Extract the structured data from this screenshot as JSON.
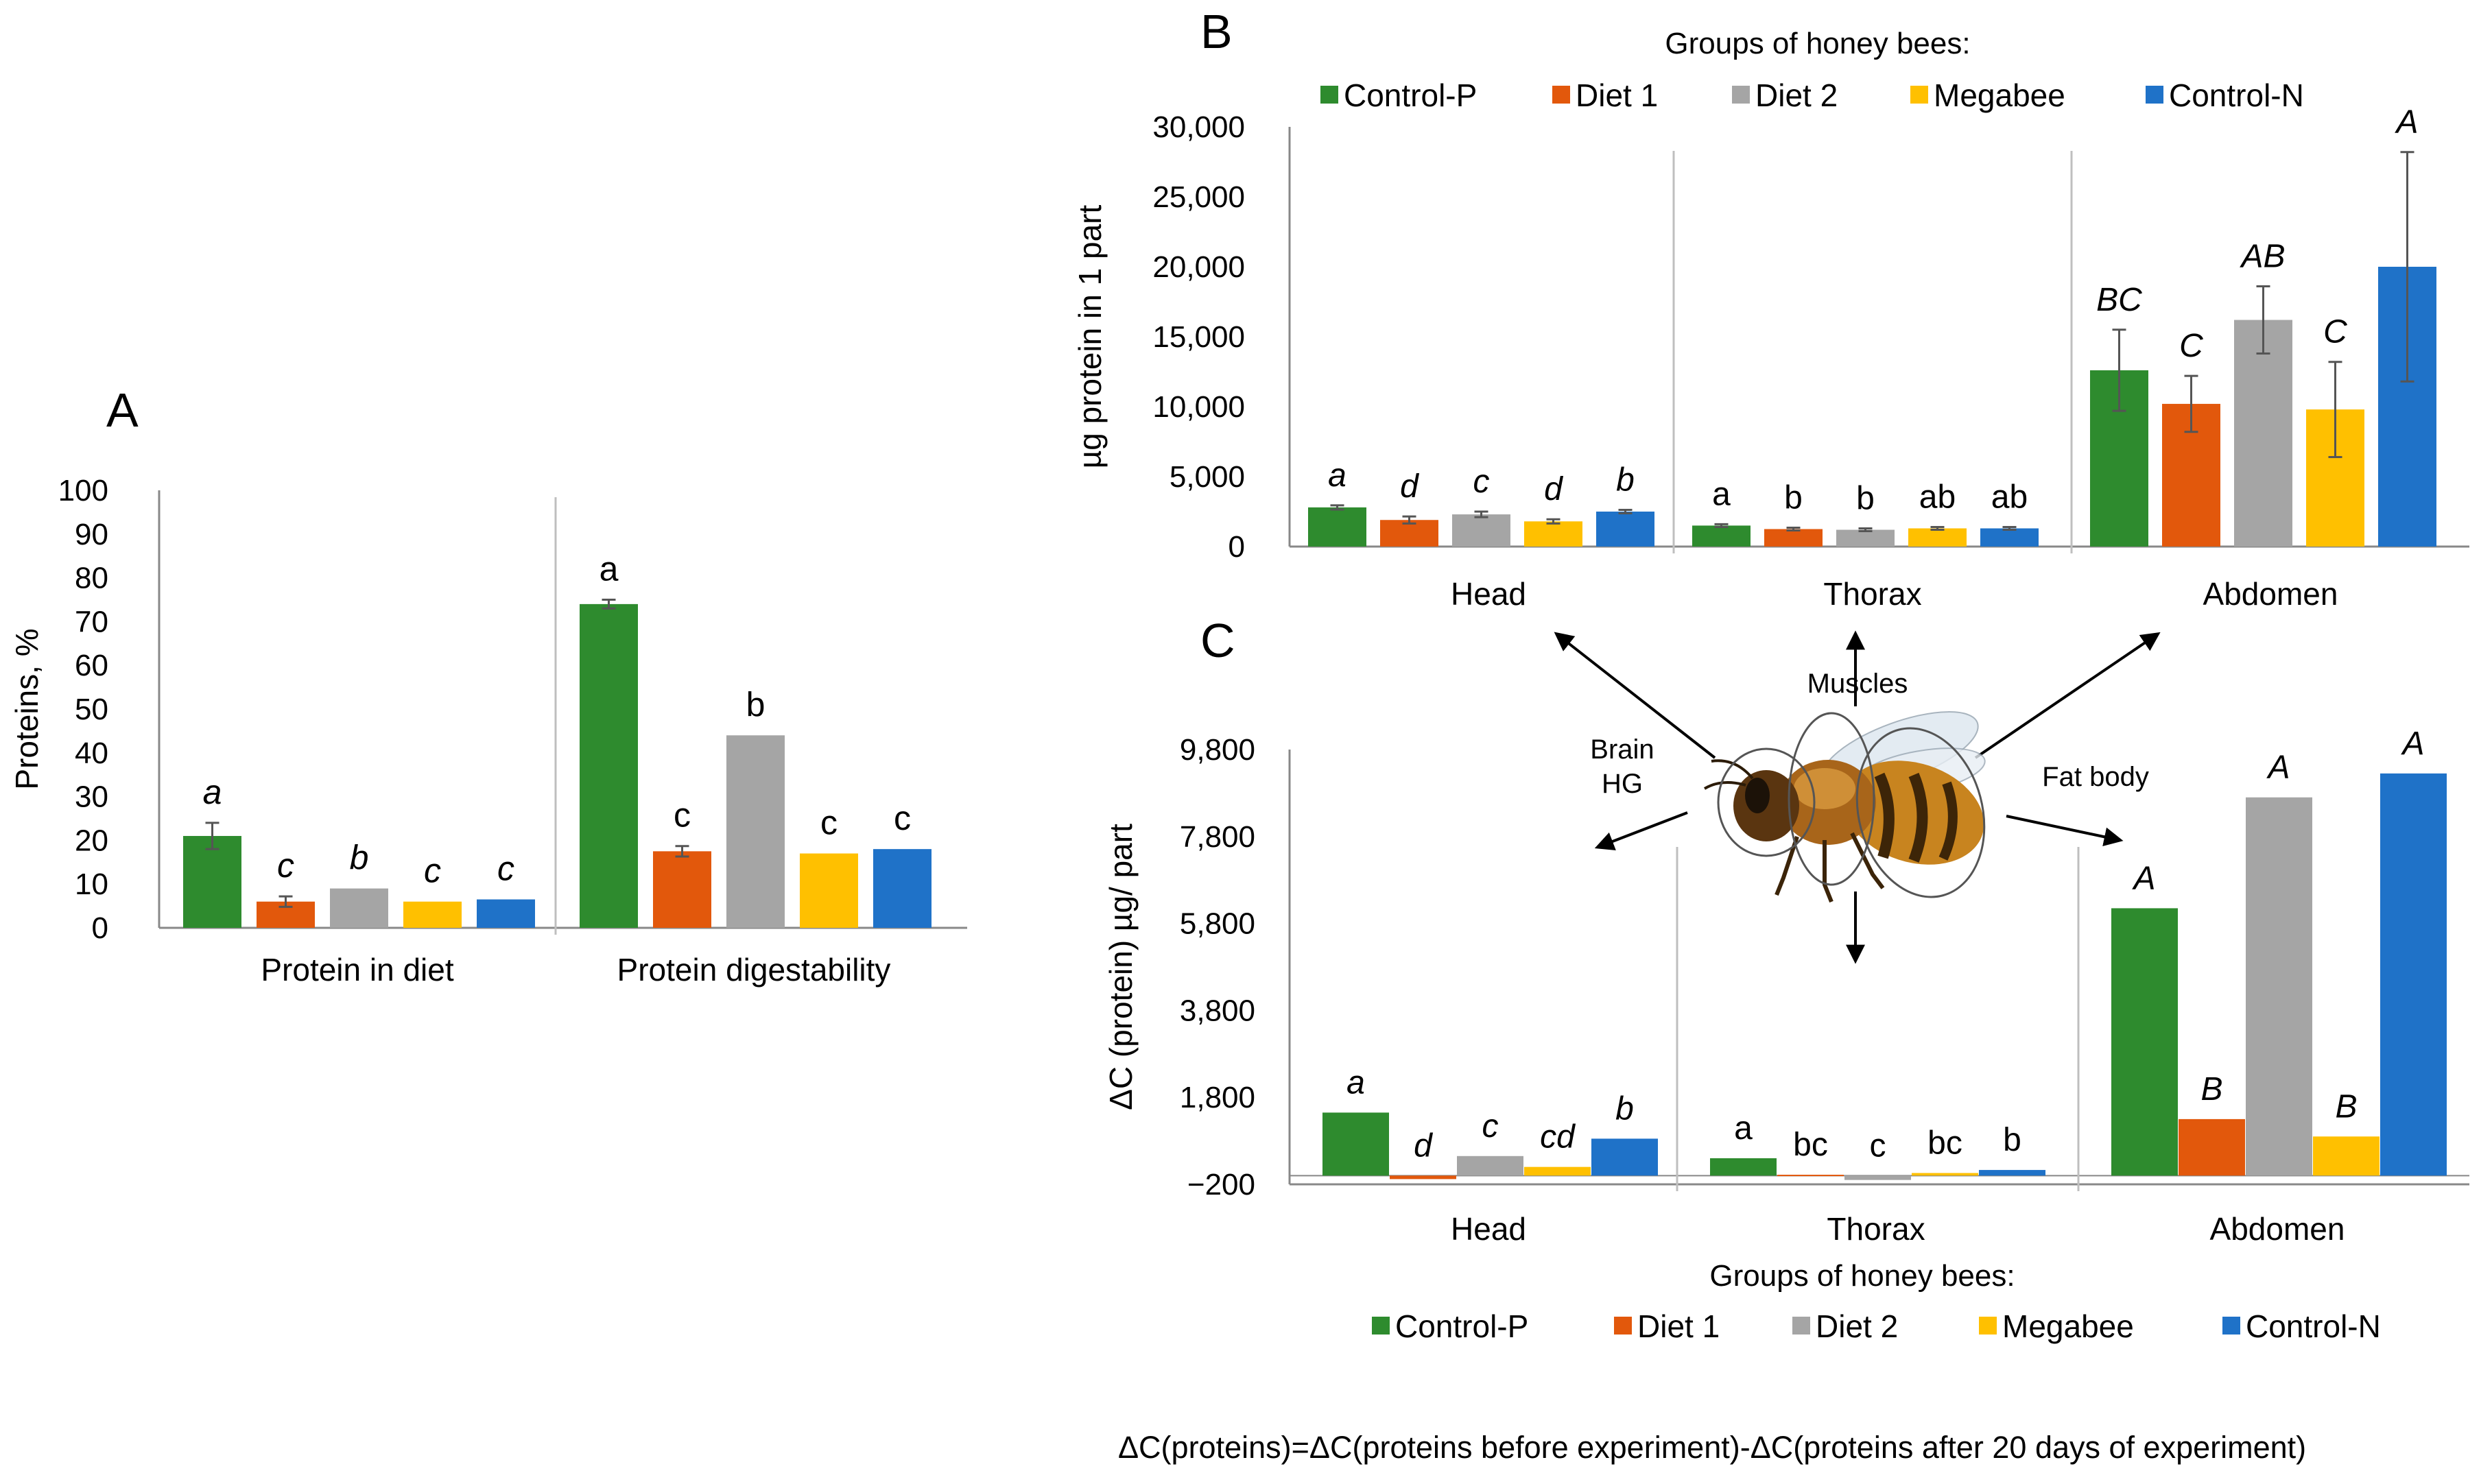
{
  "colors": {
    "Control-P": "#2e8b2e",
    "Diet 1": "#e2580c",
    "Diet 2": "#a5a5a5",
    "Megabee": "#ffc000",
    "Control-N": "#1f72c8",
    "axis": "#888888",
    "separator": "#bfbfbf",
    "errorbar": "#555555"
  },
  "chart_data": [
    {
      "id": "A",
      "type": "bar",
      "panel_label": "A",
      "ylabel": "Proteins, %",
      "ylim": [
        0,
        100
      ],
      "yticks": [
        0,
        10,
        20,
        30,
        40,
        50,
        60,
        70,
        80,
        90,
        100
      ],
      "categories": [
        "Protein in diet",
        "Protein digestability"
      ],
      "series": [
        {
          "name": "Control-P",
          "values": [
            21,
            74
          ],
          "errors": [
            3,
            1
          ],
          "letters": [
            "a",
            "a"
          ]
        },
        {
          "name": "Diet 1",
          "values": [
            6,
            17.5
          ],
          "errors": [
            1.2,
            1.2
          ],
          "letters": [
            "c",
            "c"
          ]
        },
        {
          "name": "Diet 2",
          "values": [
            9,
            44
          ],
          "errors": [
            0,
            0
          ],
          "letters": [
            "b",
            "b"
          ]
        },
        {
          "name": "Megabee",
          "values": [
            6,
            17
          ],
          "errors": [
            0,
            0
          ],
          "letters": [
            "c",
            "c"
          ]
        },
        {
          "name": "Control-N",
          "values": [
            6.5,
            18
          ],
          "errors": [
            0,
            0
          ],
          "letters": [
            "c",
            "c"
          ]
        }
      ],
      "letter_style": [
        "italic",
        "normal"
      ]
    },
    {
      "id": "B",
      "type": "bar",
      "panel_label": "B",
      "legend_title": "Groups of honey bees:",
      "legend": [
        "Control-P",
        "Diet 1",
        "Diet 2",
        "Megabee",
        "Control-N"
      ],
      "ylabel": "µg protein in 1 part",
      "ylim": [
        0,
        30000
      ],
      "yticks": [
        0,
        5000,
        10000,
        15000,
        20000,
        25000,
        30000
      ],
      "ytick_labels": [
        "0",
        "5,000",
        "10,000",
        "15,000",
        "20,000",
        "25,000",
        "30,000"
      ],
      "categories": [
        "Head",
        "Thorax",
        "Abdomen"
      ],
      "series": [
        {
          "name": "Control-P",
          "values": [
            2800,
            1500,
            12600
          ],
          "errors": [
            150,
            100,
            2900
          ],
          "letters": [
            "a",
            "a",
            "BC"
          ]
        },
        {
          "name": "Diet 1",
          "values": [
            1900,
            1250,
            10200
          ],
          "errors": [
            250,
            100,
            2000
          ],
          "letters": [
            "d",
            "b",
            "C"
          ]
        },
        {
          "name": "Diet 2",
          "values": [
            2300,
            1200,
            16200
          ],
          "errors": [
            200,
            100,
            2400
          ],
          "letters": [
            "c",
            "b",
            "AB"
          ]
        },
        {
          "name": "Megabee",
          "values": [
            1800,
            1300,
            9800
          ],
          "errors": [
            150,
            100,
            3400
          ],
          "letters": [
            "d",
            "ab",
            "C"
          ]
        },
        {
          "name": "Control-N",
          "values": [
            2500,
            1300,
            20000
          ],
          "errors": [
            120,
            100,
            8200
          ],
          "letters": [
            "b",
            "ab",
            "A"
          ]
        }
      ],
      "letter_style": [
        "italic",
        "normal",
        "italic"
      ]
    },
    {
      "id": "C",
      "type": "bar",
      "panel_label": "C",
      "legend_title": "Groups of honey bees:",
      "legend": [
        "Control-P",
        "Diet 1",
        "Diet 2",
        "Megabee",
        "Control-N"
      ],
      "ylabel": "ΔC (protein) µg/ part",
      "ylim": [
        -200,
        9800
      ],
      "yticks": [
        -200,
        1800,
        3800,
        5800,
        7800,
        9800
      ],
      "ytick_labels": [
        "−200",
        "1,800",
        "3,800",
        "5,800",
        "7,800",
        "9,800"
      ],
      "categories": [
        "Head",
        "Thorax",
        "Abdomen"
      ],
      "series": [
        {
          "name": "Control-P",
          "values": [
            1450,
            400,
            6150
          ],
          "letters": [
            "a",
            "a",
            "A"
          ]
        },
        {
          "name": "Diet 1",
          "values": [
            -80,
            20,
            1300
          ],
          "letters": [
            "d",
            "bc",
            "B"
          ]
        },
        {
          "name": "Diet 2",
          "values": [
            450,
            -100,
            8700
          ],
          "letters": [
            "c",
            "c",
            "A"
          ]
        },
        {
          "name": "Megabee",
          "values": [
            200,
            60,
            900
          ],
          "letters": [
            "cd",
            "bc",
            "B"
          ]
        },
        {
          "name": "Control-N",
          "values": [
            850,
            130,
            9250
          ],
          "letters": [
            "b",
            "b",
            "A"
          ]
        }
      ],
      "letter_style": [
        "italic",
        "normal",
        "italic"
      ]
    }
  ],
  "diagram": {
    "labels": {
      "muscles": "Muscles",
      "brain": "Brain",
      "hg": "HG",
      "fat_body": "Fat body"
    }
  },
  "footnote": "ΔC(proteins)=ΔC(proteins before experiment)-ΔC(proteins after 20 days of experiment)"
}
